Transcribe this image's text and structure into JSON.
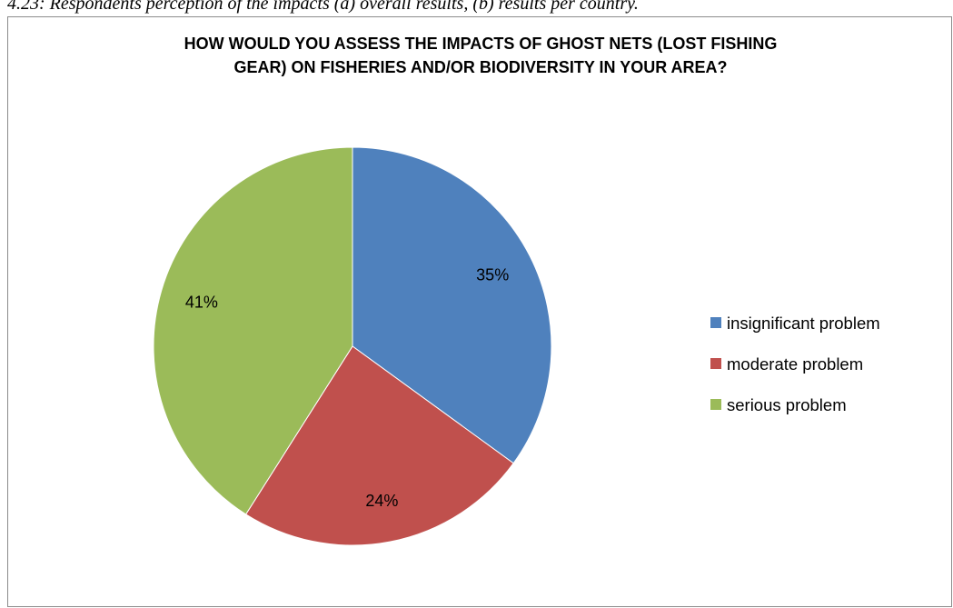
{
  "figure": {
    "caption": "4.23: Respondents perception of the impacts (a) overall results, (b) results per country."
  },
  "chart_data": {
    "type": "pie",
    "title_lines": [
      "HOW WOULD YOU ASSESS THE IMPACTS OF GHOST NETS (LOST FISHING",
      "GEAR) ON FISHERIES AND/OR BIODIVERSITY IN YOUR AREA?"
    ],
    "slices": [
      {
        "label": "insignificant problem",
        "value": 35,
        "display": "35%",
        "color": "#4f81bd"
      },
      {
        "label": "moderate problem",
        "value": 24,
        "display": "24%",
        "color": "#c0504d"
      },
      {
        "label": "serious problem",
        "value": 41,
        "display": "41%",
        "color": "#9bbb59"
      }
    ],
    "legend_position": "right"
  }
}
